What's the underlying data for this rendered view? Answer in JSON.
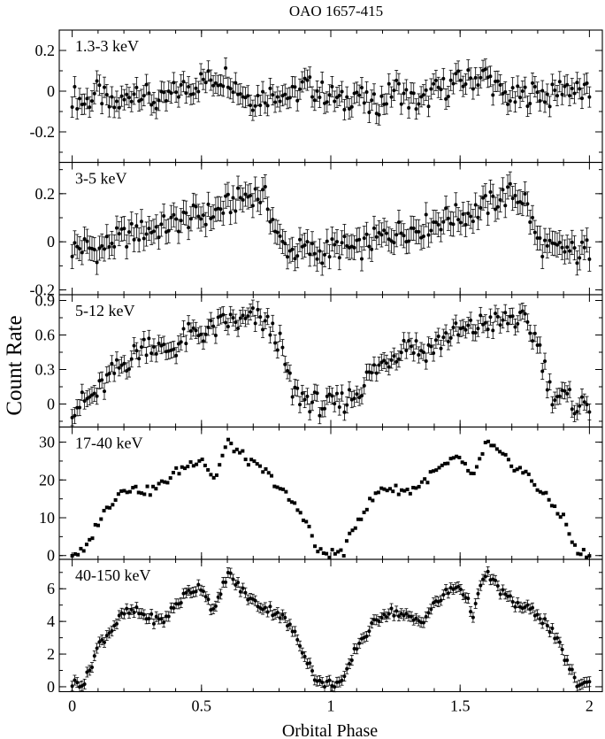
{
  "chart_data": {
    "type": "scatter",
    "title": "OAO 1657-415",
    "xlabel": "Orbital Phase",
    "ylabel": "Count Rate",
    "xlim": [
      -0.05,
      2.05
    ],
    "xticks": [
      0,
      0.5,
      1,
      1.5,
      2
    ],
    "xtick_labels": [
      "0",
      "0.5",
      "1",
      "1.5",
      "2"
    ],
    "grid": false,
    "period": 1,
    "panels": [
      {
        "name": "1.3-3 keV",
        "ylim": [
          -0.35,
          0.3
        ],
        "yticks": [
          -0.2,
          0,
          0.2
        ],
        "ytick_labels": [
          "-0.2",
          "0",
          "0.2"
        ],
        "error_bars": true,
        "phase": [
          0.0,
          0.05,
          0.1,
          0.15,
          0.2,
          0.25,
          0.3,
          0.35,
          0.4,
          0.45,
          0.5,
          0.55,
          0.6,
          0.65,
          0.7,
          0.75,
          0.8,
          0.85,
          0.9,
          0.95,
          1.0
        ],
        "values": [
          -0.02,
          -0.06,
          0.0,
          -0.08,
          -0.05,
          0.02,
          -0.04,
          -0.06,
          0.0,
          0.02,
          0.05,
          0.06,
          0.08,
          0.0,
          -0.04,
          -0.02,
          0.0,
          -0.03,
          0.03,
          0.0,
          -0.02
        ],
        "error": 0.05
      },
      {
        "name": "3-5 keV",
        "ylim": [
          -0.22,
          0.33
        ],
        "yticks": [
          -0.2,
          0,
          0.2
        ],
        "ytick_labels": [
          "-0.2",
          "0",
          "0.2"
        ],
        "error_bars": true,
        "phase": [
          0.0,
          0.05,
          0.1,
          0.15,
          0.2,
          0.25,
          0.3,
          0.35,
          0.4,
          0.45,
          0.5,
          0.55,
          0.6,
          0.65,
          0.7,
          0.75,
          0.8,
          0.85,
          0.9,
          0.95,
          1.0
        ],
        "values": [
          -0.03,
          -0.02,
          -0.04,
          0.0,
          0.02,
          0.04,
          0.05,
          0.06,
          0.08,
          0.1,
          0.11,
          0.12,
          0.15,
          0.18,
          0.2,
          0.18,
          0.0,
          -0.04,
          -0.03,
          -0.05,
          -0.03
        ],
        "error": 0.05
      },
      {
        "name": "5-12 keV",
        "ylim": [
          -0.2,
          0.95
        ],
        "yticks": [
          0,
          0.3,
          0.6,
          0.9
        ],
        "ytick_labels": [
          "0",
          "0.3",
          "0.6",
          "0.9"
        ],
        "error_bars": true,
        "phase": [
          0.0,
          0.05,
          0.1,
          0.15,
          0.2,
          0.25,
          0.3,
          0.35,
          0.4,
          0.45,
          0.5,
          0.55,
          0.6,
          0.65,
          0.7,
          0.75,
          0.8,
          0.85,
          0.9,
          0.95,
          1.0
        ],
        "values": [
          -0.02,
          0.02,
          0.1,
          0.25,
          0.35,
          0.45,
          0.55,
          0.45,
          0.5,
          0.6,
          0.62,
          0.65,
          0.72,
          0.7,
          0.75,
          0.7,
          0.55,
          0.1,
          0.05,
          0.0,
          -0.02
        ],
        "error": 0.07
      },
      {
        "name": "17-40 keV",
        "ylim": [
          -1,
          34
        ],
        "yticks": [
          0,
          10,
          20,
          30
        ],
        "ytick_labels": [
          "0",
          "10",
          "20",
          "30"
        ],
        "error_bars": false,
        "phase": [
          0.0,
          0.05,
          0.1,
          0.15,
          0.2,
          0.25,
          0.3,
          0.35,
          0.4,
          0.45,
          0.5,
          0.55,
          0.6,
          0.65,
          0.7,
          0.75,
          0.8,
          0.85,
          0.9,
          0.95,
          1.0
        ],
        "values": [
          0.5,
          1.0,
          9.0,
          14.0,
          18.0,
          17.5,
          17.0,
          19.0,
          22.0,
          24.0,
          26.0,
          20.0,
          30.0,
          27.0,
          24.0,
          22.0,
          18.0,
          14.0,
          10.0,
          0.8,
          0.5
        ],
        "error": 0.5
      },
      {
        "name": "40-150 keV",
        "ylim": [
          -0.3,
          7.8
        ],
        "yticks": [
          0,
          2,
          4,
          6
        ],
        "ytick_labels": [
          "0",
          "2",
          "4",
          "6"
        ],
        "error_bars": true,
        "phase": [
          0.0,
          0.05,
          0.1,
          0.15,
          0.2,
          0.25,
          0.3,
          0.35,
          0.4,
          0.45,
          0.5,
          0.55,
          0.6,
          0.65,
          0.7,
          0.75,
          0.8,
          0.85,
          0.9,
          0.95,
          1.0
        ],
        "values": [
          0.2,
          0.3,
          2.5,
          3.5,
          4.5,
          4.6,
          4.2,
          4.0,
          5.0,
          5.8,
          6.2,
          4.5,
          7.0,
          6.0,
          5.2,
          4.8,
          4.5,
          3.5,
          2.0,
          0.2,
          0.2
        ],
        "error": 0.3
      }
    ]
  }
}
